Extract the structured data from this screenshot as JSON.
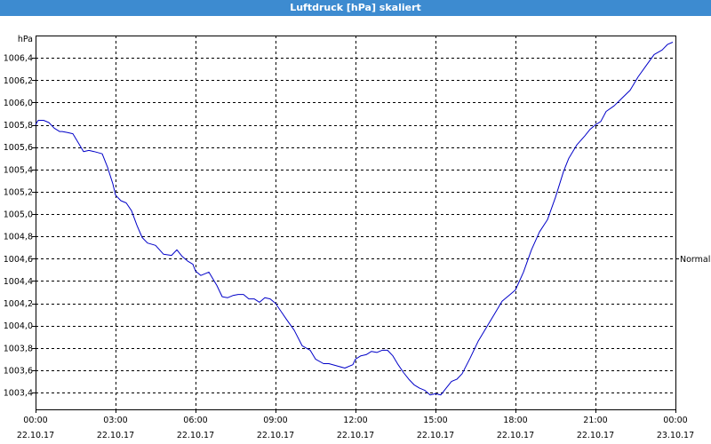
{
  "window": {
    "title": "Luftdruck [hPa] skaliert"
  },
  "chart_data": {
    "type": "line",
    "title": "Luftdruck [hPa] skaliert",
    "ylabel": "hPa",
    "xlabel": "",
    "ylim": [
      1003.25,
      1006.6
    ],
    "yticks": [
      1003.4,
      1003.6,
      1003.8,
      1004.0,
      1004.2,
      1004.4,
      1004.6,
      1004.8,
      1005.0,
      1005.2,
      1005.4,
      1005.6,
      1005.8,
      1006.0,
      1006.2,
      1006.4
    ],
    "ytick_labels": [
      "1003,4",
      "1003,6",
      "1003,8",
      "1004,0",
      "1004,2",
      "1004,4",
      "1004,6",
      "1004,8",
      "1005,0",
      "1005,2",
      "1005,4",
      "1005,6",
      "1005,8",
      "1006,0",
      "1006,2",
      "1006,4"
    ],
    "xlim": [
      0,
      24
    ],
    "xticks": [
      0,
      3,
      6,
      9,
      12,
      15,
      18,
      21,
      24
    ],
    "xtick_labels": [
      {
        "time": "00:00",
        "date": "22.10.17"
      },
      {
        "time": "03:00",
        "date": "22.10.17"
      },
      {
        "time": "06:00",
        "date": "22.10.17"
      },
      {
        "time": "09:00",
        "date": "22.10.17"
      },
      {
        "time": "12:00",
        "date": "22.10.17"
      },
      {
        "time": "15:00",
        "date": "22.10.17"
      },
      {
        "time": "18:00",
        "date": "22.10.17"
      },
      {
        "time": "21:00",
        "date": "22.10.17"
      },
      {
        "time": "00:00",
        "date": "23.10.17"
      }
    ],
    "grid": true,
    "reference_line": {
      "label": "Normal",
      "value": 1004.6
    },
    "colors": {
      "line": "#0000c8",
      "grid": "#000000",
      "title_bar": "#3d8bd0"
    },
    "series": [
      {
        "x": [
          0,
          0.1,
          0.3,
          0.5,
          0.7,
          0.9,
          1.0,
          1.2,
          1.4,
          1.6,
          1.8,
          2.0,
          2.2,
          2.5,
          2.7,
          2.9,
          3.0,
          3.2,
          3.4,
          3.6,
          3.8,
          4.0,
          4.2,
          4.5,
          4.8,
          5.1,
          5.3,
          5.5,
          5.7,
          5.9,
          6.0,
          6.2,
          6.5,
          6.8,
          7.0,
          7.2,
          7.4,
          7.6,
          7.8,
          8.0,
          8.2,
          8.4,
          8.6,
          8.8,
          9.0,
          9.2,
          9.4,
          9.7,
          10.0,
          10.3,
          10.5,
          10.8,
          11.0,
          11.3,
          11.6,
          11.9,
          12.0,
          12.2,
          12.4,
          12.6,
          12.8,
          13.0,
          13.2,
          13.4,
          13.6,
          13.8,
          14.0,
          14.2,
          14.4,
          14.6,
          14.8,
          15.0,
          15.2,
          15.4,
          15.6,
          15.8,
          16.0,
          16.3,
          16.6,
          16.9,
          17.2,
          17.5,
          17.8,
          18.0,
          18.3,
          18.6,
          18.9,
          19.2,
          19.5,
          19.8,
          20.0,
          20.3,
          20.6,
          20.8,
          21.0,
          21.2,
          21.4,
          21.7,
          22.0,
          22.3,
          22.6,
          22.9,
          23.2,
          23.5,
          23.7,
          23.9
        ],
        "values": [
          1005.8,
          1005.84,
          1005.84,
          1005.82,
          1005.77,
          1005.74,
          1005.74,
          1005.73,
          1005.72,
          1005.64,
          1005.56,
          1005.57,
          1005.56,
          1005.54,
          1005.42,
          1005.27,
          1005.17,
          1005.12,
          1005.1,
          1005.03,
          1004.9,
          1004.79,
          1004.74,
          1004.72,
          1004.64,
          1004.63,
          1004.68,
          1004.62,
          1004.58,
          1004.55,
          1004.49,
          1004.45,
          1004.48,
          1004.36,
          1004.26,
          1004.25,
          1004.27,
          1004.28,
          1004.28,
          1004.24,
          1004.24,
          1004.21,
          1004.25,
          1004.24,
          1004.2,
          1004.13,
          1004.06,
          1003.96,
          1003.82,
          1003.78,
          1003.7,
          1003.66,
          1003.66,
          1003.64,
          1003.62,
          1003.65,
          1003.7,
          1003.73,
          1003.74,
          1003.77,
          1003.76,
          1003.78,
          1003.78,
          1003.73,
          1003.65,
          1003.58,
          1003.52,
          1003.47,
          1003.44,
          1003.42,
          1003.38,
          1003.39,
          1003.38,
          1003.44,
          1003.5,
          1003.52,
          1003.57,
          1003.71,
          1003.86,
          1003.98,
          1004.1,
          1004.22,
          1004.28,
          1004.32,
          1004.48,
          1004.68,
          1004.84,
          1004.95,
          1005.15,
          1005.38,
          1005.5,
          1005.62,
          1005.7,
          1005.76,
          1005.8,
          1005.83,
          1005.92,
          1005.97,
          1006.04,
          1006.11,
          1006.23,
          1006.33,
          1006.43,
          1006.47,
          1006.52,
          1006.54
        ]
      }
    ]
  }
}
